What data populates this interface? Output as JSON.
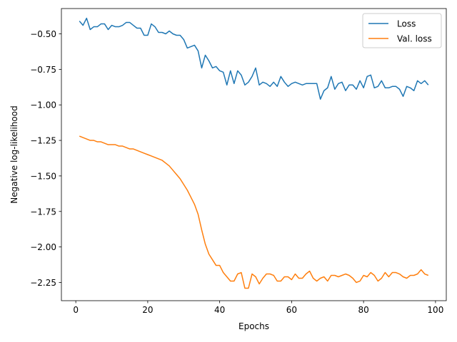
{
  "chart_data": {
    "type": "line",
    "xlabel": "Epochs",
    "ylabel": "Negative log-likelihood",
    "xlim": [
      -4.0,
      103.0
    ],
    "ylim": [
      -2.378,
      -0.322
    ],
    "xticks": [
      0,
      20,
      40,
      60,
      80,
      100
    ],
    "yticks": [
      -0.5,
      -0.75,
      -1.0,
      -1.25,
      -1.5,
      -1.75,
      -2.0,
      -2.25
    ],
    "xtick_labels": [
      "0",
      "20",
      "40",
      "60",
      "80",
      "100"
    ],
    "ytick_labels": [
      "−0.50",
      "−0.75",
      "−1.00",
      "−1.25",
      "−1.50",
      "−1.75",
      "−2.00",
      "−2.25"
    ],
    "grid": false,
    "legend": "top-right",
    "x": [
      1,
      2,
      3,
      4,
      5,
      6,
      7,
      8,
      9,
      10,
      11,
      12,
      13,
      14,
      15,
      16,
      17,
      18,
      19,
      20,
      21,
      22,
      23,
      24,
      25,
      26,
      27,
      28,
      29,
      30,
      31,
      32,
      33,
      34,
      35,
      36,
      37,
      38,
      39,
      40,
      41,
      42,
      43,
      44,
      45,
      46,
      47,
      48,
      49,
      50,
      51,
      52,
      53,
      54,
      55,
      56,
      57,
      58,
      59,
      60,
      61,
      62,
      63,
      64,
      65,
      66,
      67,
      68,
      69,
      70,
      71,
      72,
      73,
      74,
      75,
      76,
      77,
      78,
      79,
      80,
      81,
      82,
      83,
      84,
      85,
      86,
      87,
      88,
      89,
      90,
      91,
      92,
      93,
      94,
      95,
      96,
      97,
      98
    ],
    "series": [
      {
        "name": "Loss",
        "color": "#1f77b4",
        "values": [
          -0.41,
          -0.44,
          -0.39,
          -0.47,
          -0.45,
          -0.45,
          -0.43,
          -0.43,
          -0.47,
          -0.44,
          -0.45,
          -0.45,
          -0.44,
          -0.42,
          -0.42,
          -0.44,
          -0.46,
          -0.46,
          -0.51,
          -0.51,
          -0.43,
          -0.45,
          -0.49,
          -0.49,
          -0.5,
          -0.48,
          -0.5,
          -0.51,
          -0.51,
          -0.54,
          -0.6,
          -0.59,
          -0.58,
          -0.62,
          -0.74,
          -0.65,
          -0.69,
          -0.74,
          -0.73,
          -0.76,
          -0.77,
          -0.86,
          -0.76,
          -0.85,
          -0.76,
          -0.79,
          -0.86,
          -0.84,
          -0.8,
          -0.74,
          -0.86,
          -0.84,
          -0.85,
          -0.87,
          -0.84,
          -0.87,
          -0.8,
          -0.84,
          -0.87,
          -0.85,
          -0.84,
          -0.85,
          -0.86,
          -0.85,
          -0.85,
          -0.85,
          -0.85,
          -0.96,
          -0.9,
          -0.88,
          -0.8,
          -0.89,
          -0.85,
          -0.84,
          -0.9,
          -0.86,
          -0.86,
          -0.89,
          -0.83,
          -0.88,
          -0.8,
          -0.79,
          -0.88,
          -0.87,
          -0.83,
          -0.88,
          -0.88,
          -0.87,
          -0.87,
          -0.89,
          -0.94,
          -0.87,
          -0.88,
          -0.9,
          -0.83,
          -0.85,
          -0.83,
          -0.86
        ]
      },
      {
        "name": "Val. loss",
        "color": "#ff7f0e",
        "values": [
          -1.22,
          -1.23,
          -1.24,
          -1.25,
          -1.25,
          -1.26,
          -1.26,
          -1.27,
          -1.28,
          -1.28,
          -1.28,
          -1.29,
          -1.29,
          -1.3,
          -1.31,
          -1.31,
          -1.32,
          -1.33,
          -1.34,
          -1.35,
          -1.36,
          -1.37,
          -1.38,
          -1.39,
          -1.41,
          -1.43,
          -1.46,
          -1.49,
          -1.52,
          -1.56,
          -1.6,
          -1.65,
          -1.7,
          -1.77,
          -1.88,
          -1.98,
          -2.05,
          -2.09,
          -2.13,
          -2.13,
          -2.18,
          -2.21,
          -2.24,
          -2.24,
          -2.19,
          -2.18,
          -2.29,
          -2.29,
          -2.19,
          -2.21,
          -2.26,
          -2.22,
          -2.19,
          -2.19,
          -2.2,
          -2.24,
          -2.24,
          -2.21,
          -2.21,
          -2.23,
          -2.19,
          -2.22,
          -2.22,
          -2.19,
          -2.17,
          -2.22,
          -2.24,
          -2.22,
          -2.21,
          -2.24,
          -2.2,
          -2.2,
          -2.21,
          -2.2,
          -2.19,
          -2.2,
          -2.22,
          -2.25,
          -2.24,
          -2.2,
          -2.21,
          -2.18,
          -2.2,
          -2.24,
          -2.22,
          -2.18,
          -2.21,
          -2.18,
          -2.18,
          -2.19,
          -2.21,
          -2.22,
          -2.2,
          -2.2,
          -2.19,
          -2.16,
          -2.19,
          -2.2
        ]
      }
    ]
  }
}
